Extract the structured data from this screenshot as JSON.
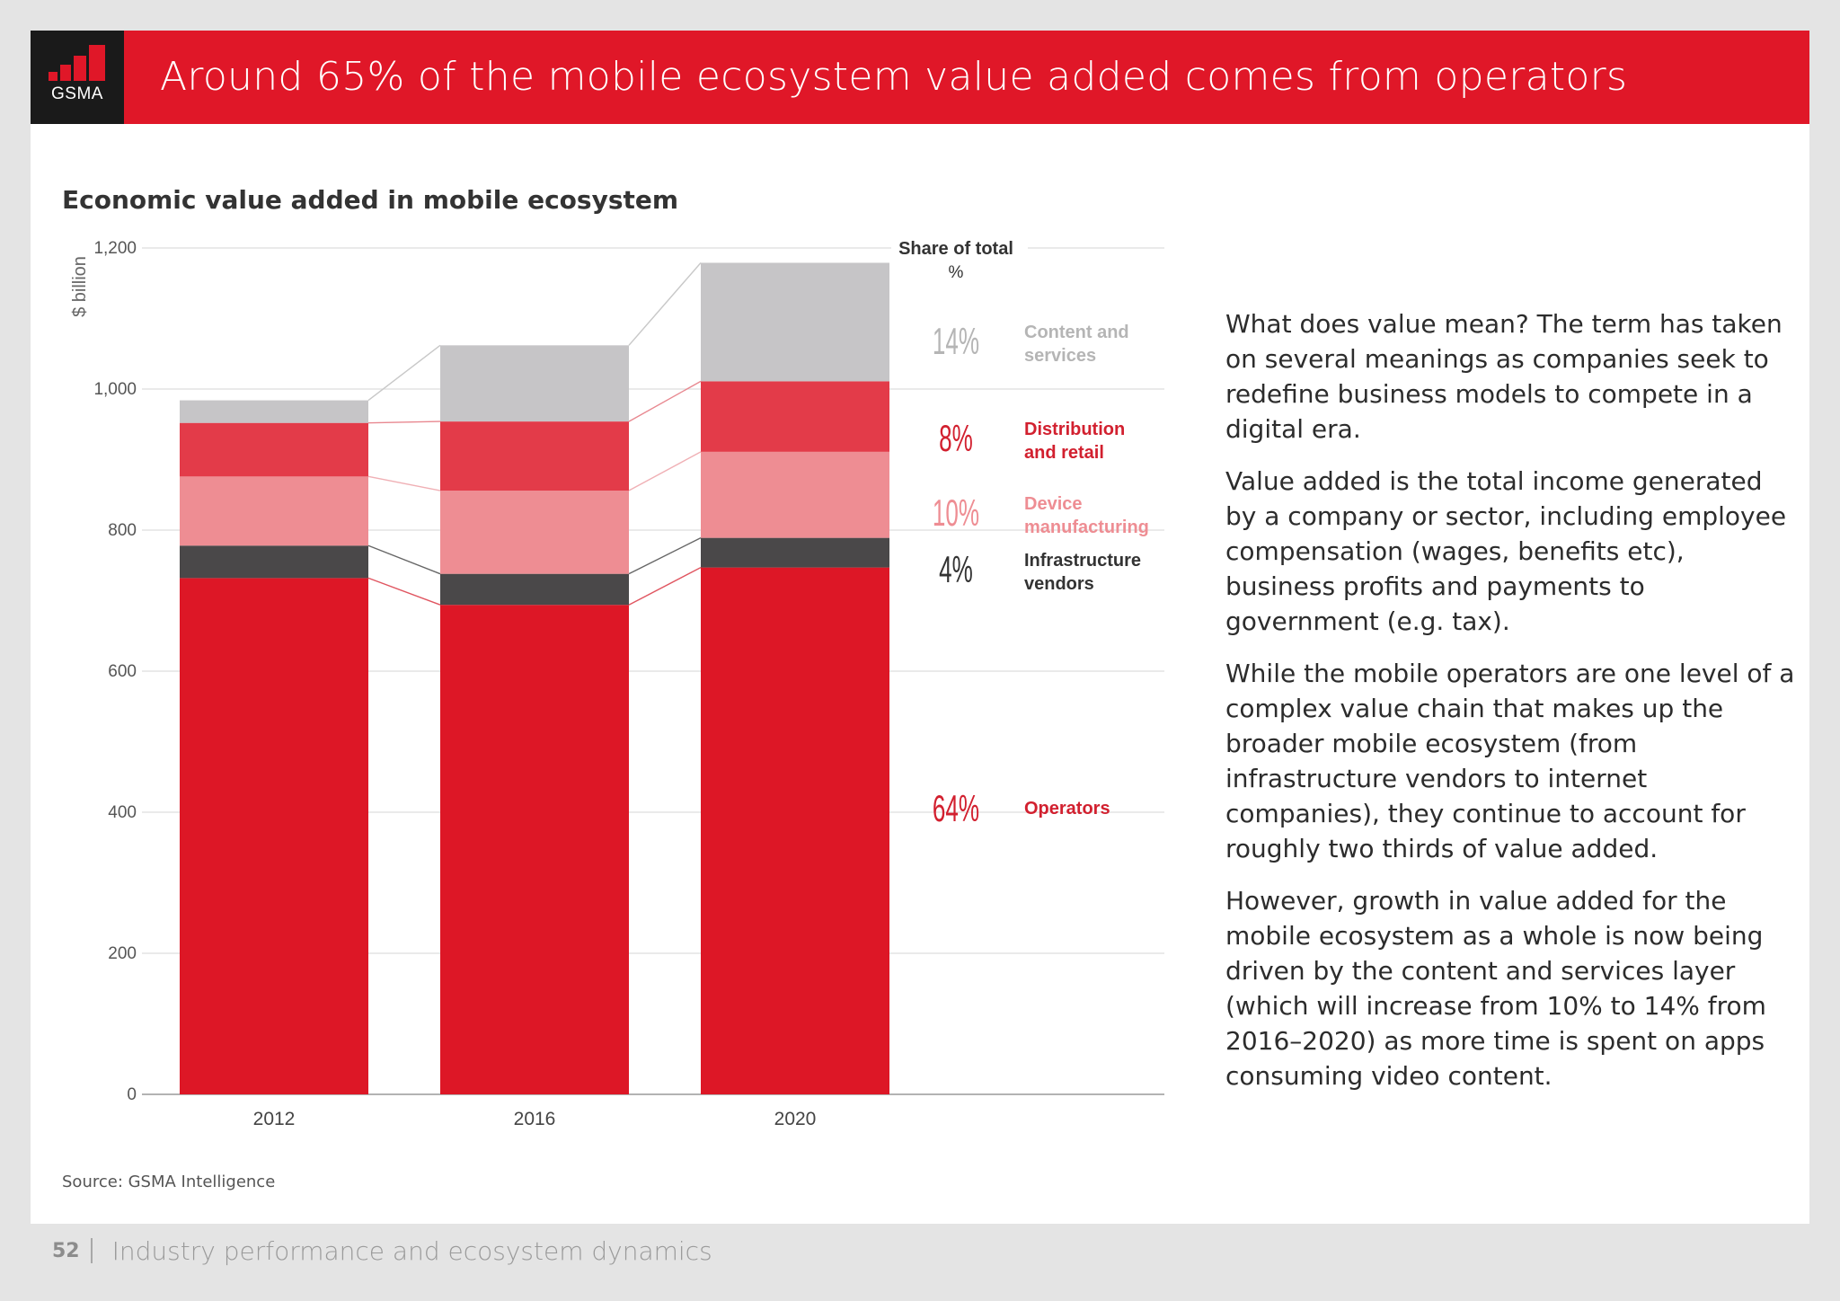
{
  "header": {
    "logo_text": "GSMA",
    "title": "Around 65% of the mobile ecosystem value added comes from operators"
  },
  "colors": {
    "brand_red": "#e01728",
    "operators": "#dd1726",
    "infrastructure": "#4a4849",
    "device": "#ee8d93",
    "distribution": "#e33b49",
    "content": "#c6c5c7"
  },
  "chart_data": {
    "type": "bar",
    "stacked": true,
    "title": "Economic value added in mobile ecosystem",
    "ylabel": "$ billion",
    "xlabel": "",
    "ylim": [
      0,
      1200
    ],
    "yticks": [
      0,
      200,
      400,
      600,
      800,
      1000,
      1200
    ],
    "ytick_labels": [
      "0",
      "200",
      "400",
      "600",
      "800",
      "1,000",
      "1,200"
    ],
    "categories": [
      "2012",
      "2016",
      "2020"
    ],
    "grid": true,
    "series": [
      {
        "name": "Operators",
        "values": [
          732,
          694,
          747
        ],
        "share": "64%"
      },
      {
        "name": "Infrastructure vendors",
        "values": [
          46,
          44,
          42
        ],
        "share": "4%"
      },
      {
        "name": "Device manufacturing",
        "values": [
          98,
          118,
          122
        ],
        "share": "10%"
      },
      {
        "name": "Distribution and retail",
        "values": [
          76,
          98,
          100
        ],
        "share": "8%"
      },
      {
        "name": "Content and services",
        "values": [
          32,
          108,
          168
        ],
        "share": "14%"
      }
    ],
    "share_header": "Share of total",
    "share_unit": "%",
    "labels": [
      {
        "lines": [
          "Content and",
          "services"
        ]
      },
      {
        "lines": [
          "Distribution",
          "and retail"
        ]
      },
      {
        "lines": [
          "Device",
          "manufacturing"
        ]
      },
      {
        "lines": [
          "Infrastructure",
          "vendors"
        ]
      },
      {
        "lines": [
          "Operators"
        ]
      }
    ]
  },
  "source": "Source: GSMA Intelligence",
  "body": [
    "What does value mean? The term has taken on several meanings as companies seek to redefine business models to compete in a digital era.",
    "Value added is the total income generated by a company or sector, including employee compensation (wages, benefits etc), business profits and payments to government (e.g. tax).",
    "While the mobile operators are one level of a complex value chain that makes up the broader mobile ecosystem (from infrastructure vendors to internet companies), they continue to account for roughly two thirds of value added.",
    "However, growth in value added for the mobile ecosystem as a whole is now being driven by the content and services layer (which will increase from 10% to 14% from 2016–2020) as more time is spent on apps consuming video content."
  ],
  "footer": {
    "page_number": "52",
    "section": "Industry performance and ecosystem dynamics"
  }
}
